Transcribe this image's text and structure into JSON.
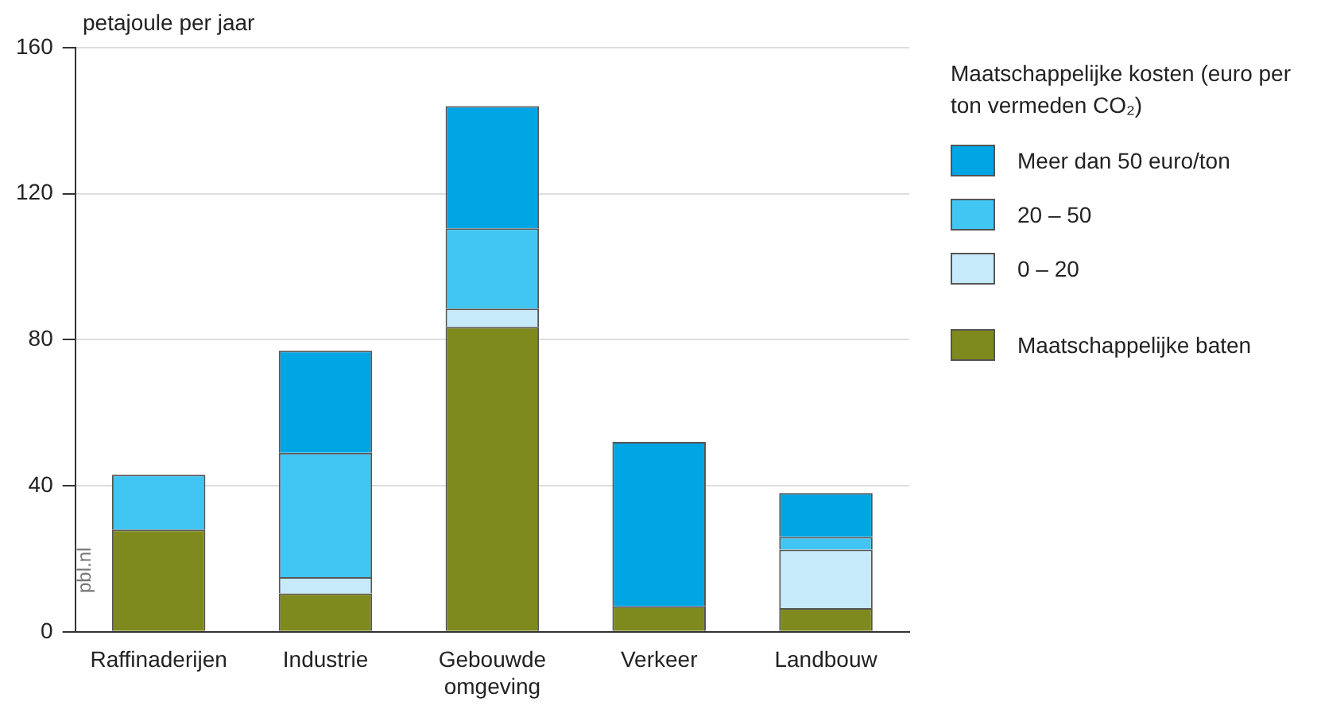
{
  "chart_data": {
    "type": "bar",
    "stacked": true,
    "ylabel": "petajoule per jaar",
    "legend_title": "Maatschappelijke kosten (euro per ton vermeden CO₂)",
    "categories": [
      "Raffinaderijen",
      "Industrie",
      "Gebouwde omgeving",
      "Verkeer",
      "Landbouw"
    ],
    "series": [
      {
        "name": "Maatschappelijke baten",
        "color": "#7f8a1e",
        "values": [
          28,
          10.5,
          83.5,
          7,
          6.5
        ]
      },
      {
        "name": "0 – 20",
        "color": "#c6eaf9",
        "values": [
          0,
          4.5,
          5,
          0,
          16
        ]
      },
      {
        "name": "20 – 50",
        "color": "#41c5f2",
        "values": [
          15,
          34,
          22,
          0,
          3.5
        ]
      },
      {
        "name": "Meer dan 50 euro/ton",
        "color": "#00a5e3",
        "values": [
          0,
          28,
          33.5,
          45,
          12
        ]
      }
    ],
    "ylim": [
      0,
      160
    ],
    "yticks": [
      0,
      40,
      80,
      120,
      160
    ],
    "grid": "y",
    "legend": "right",
    "annotations": [
      "pbl.nl"
    ]
  }
}
